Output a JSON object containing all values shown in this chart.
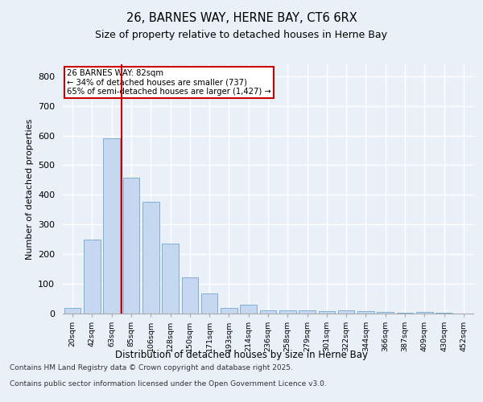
{
  "title_line1": "26, BARNES WAY, HERNE BAY, CT6 6RX",
  "title_line2": "Size of property relative to detached houses in Herne Bay",
  "xlabel": "Distribution of detached houses by size in Herne Bay",
  "ylabel": "Number of detached properties",
  "categories": [
    "20sqm",
    "42sqm",
    "63sqm",
    "85sqm",
    "106sqm",
    "128sqm",
    "150sqm",
    "171sqm",
    "193sqm",
    "214sqm",
    "236sqm",
    "258sqm",
    "279sqm",
    "301sqm",
    "322sqm",
    "344sqm",
    "366sqm",
    "387sqm",
    "409sqm",
    "430sqm",
    "452sqm"
  ],
  "values": [
    18,
    248,
    590,
    457,
    378,
    235,
    122,
    68,
    20,
    30,
    11,
    11,
    11,
    8,
    10,
    8,
    5,
    3,
    5,
    2,
    0
  ],
  "bar_color": "#c5d8f0",
  "bar_edge_color": "#7fafd4",
  "background_color": "#eaf0f8",
  "grid_color": "#ffffff",
  "vline_x_index": 2,
  "vline_color": "#cc0000",
  "annotation_text": "26 BARNES WAY: 82sqm\n← 34% of detached houses are smaller (737)\n65% of semi-detached houses are larger (1,427) →",
  "annotation_box_color": "#cc0000",
  "ylim": [
    0,
    840
  ],
  "yticks": [
    0,
    100,
    200,
    300,
    400,
    500,
    600,
    700,
    800
  ],
  "footer_line1": "Contains HM Land Registry data © Crown copyright and database right 2025.",
  "footer_line2": "Contains public sector information licensed under the Open Government Licence v3.0."
}
